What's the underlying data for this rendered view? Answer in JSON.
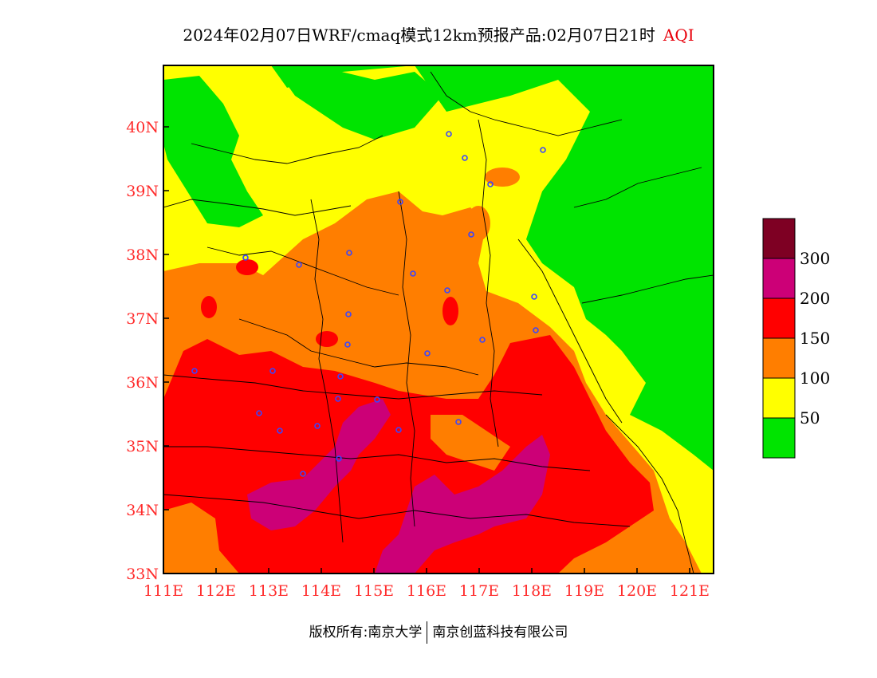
{
  "title": {
    "main": "2024年02月07日WRF/cmaq模式12km预报产品:02月07日21时",
    "product": "AQI"
  },
  "axes": {
    "lon_labels": [
      "111E",
      "112E",
      "113E",
      "114E",
      "115E",
      "116E",
      "117E",
      "118E",
      "119E",
      "120E",
      "121E"
    ],
    "lat_labels": [
      "40N",
      "39N",
      "38N",
      "37N",
      "36N",
      "35N",
      "34N",
      "33N"
    ]
  },
  "legend": {
    "labels": [
      "50",
      "100",
      "150",
      "200",
      "300"
    ],
    "colors": [
      "#00e400",
      "#ffff00",
      "#ff7e00",
      "#ff0000",
      "#cc0077",
      "#7e0023"
    ]
  },
  "footer": {
    "copyright": "版权所有:南京大学",
    "company": "南京创蓝科技有限公司"
  }
}
